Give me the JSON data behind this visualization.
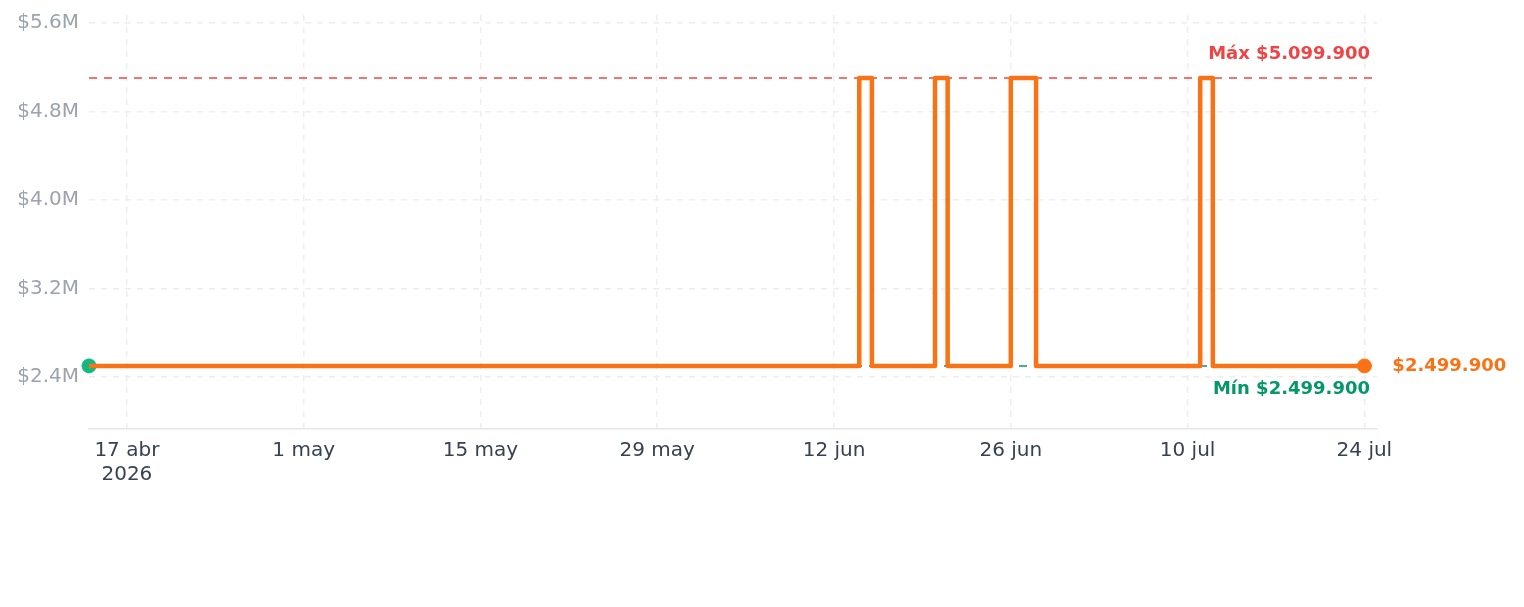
{
  "chart_data": {
    "type": "step",
    "x": [
      "2026-04-14",
      "2026-06-14",
      "2026-06-15",
      "2026-06-20",
      "2026-06-21",
      "2026-06-26",
      "2026-06-28",
      "2026-07-11",
      "2026-07-12",
      "2026-07-24"
    ],
    "series": [
      {
        "color": "#f97316",
        "marker": "none",
        "values": [
          2.4999,
          5.0999,
          2.4999,
          5.0999,
          2.4999,
          5.0999,
          2.4999,
          5.0999,
          2.4999,
          2.4999
        ]
      },
      {
        "type": "scatter",
        "x": [
          "2026-04-14"
        ],
        "values": [
          2.4999
        ],
        "color": "#10b981",
        "marker": "circle"
      },
      {
        "type": "scatter",
        "x": [
          "2026-07-24"
        ],
        "values": [
          2.4999
        ],
        "color": "#f97316",
        "marker": "circle"
      }
    ],
    "xlim": [
      "2026-04-14",
      "2026-07-25"
    ],
    "xticks": [
      {
        "value": "2026-04-17",
        "label": "17 abr\n2026"
      },
      {
        "value": "2026-05-01",
        "label": "1 may"
      },
      {
        "value": "2026-05-15",
        "label": "15 may"
      },
      {
        "value": "2026-05-29",
        "label": "29 may"
      },
      {
        "value": "2026-06-12",
        "label": "12 jun"
      },
      {
        "value": "2026-06-26",
        "label": "26 jun"
      },
      {
        "value": "2026-07-10",
        "label": "10 jul"
      },
      {
        "value": "2026-07-24",
        "label": "24 jul"
      }
    ],
    "ylim": [
      1.93,
      5.67
    ],
    "yticks": [
      {
        "value": 2.4,
        "label": "$2.4M"
      },
      {
        "value": 3.2,
        "label": "$3.2M"
      },
      {
        "value": 4.0,
        "label": "$4.0M"
      },
      {
        "value": 4.8,
        "label": "$4.8M"
      },
      {
        "value": 5.6,
        "label": "$5.6M"
      }
    ],
    "ref_lines": [
      {
        "axis": "y",
        "value": 5.0999,
        "label": "Máx $5.099.900",
        "color": "#ef4444",
        "line_style": "dashed"
      },
      {
        "axis": "y",
        "value": 2.4999,
        "label": "Mín $2.499.900",
        "color": "#059669",
        "line_style": "dashed"
      }
    ],
    "annotations": [
      {
        "text": "$2.499.900",
        "x": "2026-07-24",
        "y": 2.4999
      }
    ],
    "grid": true
  }
}
